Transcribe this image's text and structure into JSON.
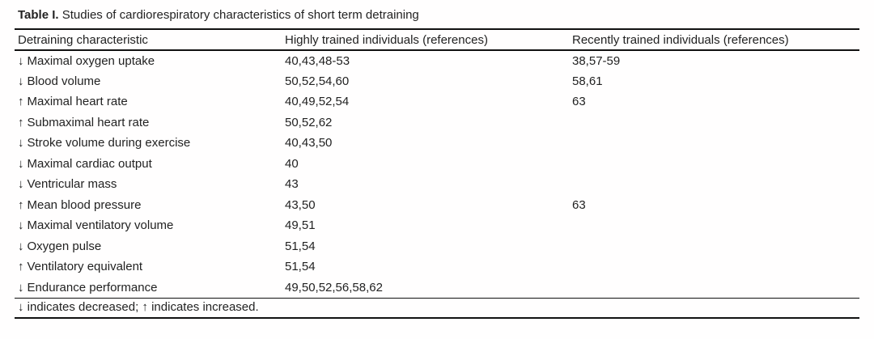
{
  "page": {
    "title_label": "Table I.",
    "title_text": "Studies of cardiorespiratory characteristics of short term detraining"
  },
  "table": {
    "columns": {
      "characteristic": "Detraining characteristic",
      "highly": "Highly trained individuals (references)",
      "recently": "Recently trained individuals (references)"
    },
    "rows": [
      {
        "arrow": "↓",
        "name": "Maximal oxygen uptake",
        "highly": "40,43,48-53",
        "recently": "38,57-59"
      },
      {
        "arrow": "↓",
        "name": "Blood volume",
        "highly": "50,52,54,60",
        "recently": "58,61"
      },
      {
        "arrow": "↑",
        "name": "Maximal heart rate",
        "highly": "40,49,52,54",
        "recently": "63"
      },
      {
        "arrow": "↑",
        "name": "Submaximal heart rate",
        "highly": "50,52,62",
        "recently": ""
      },
      {
        "arrow": "↓",
        "name": "Stroke volume during exercise",
        "highly": "40,43,50",
        "recently": ""
      },
      {
        "arrow": "↓",
        "name": "Maximal cardiac output",
        "highly": "40",
        "recently": ""
      },
      {
        "arrow": "↓",
        "name": "Ventricular mass",
        "highly": "43",
        "recently": ""
      },
      {
        "arrow": "↑",
        "name": "Mean blood pressure",
        "highly": "43,50",
        "recently": "63"
      },
      {
        "arrow": "↓",
        "name": "Maximal ventilatory volume",
        "highly": "49,51",
        "recently": ""
      },
      {
        "arrow": "↓",
        "name": "Oxygen pulse",
        "highly": "51,54",
        "recently": ""
      },
      {
        "arrow": "↑",
        "name": "Ventilatory equivalent",
        "highly": "51,54",
        "recently": ""
      },
      {
        "arrow": "↓",
        "name": "Endurance performance",
        "highly": "49,50,52,56,58,62",
        "recently": ""
      }
    ],
    "footnote": "↓ indicates decreased; ↑ indicates increased."
  }
}
